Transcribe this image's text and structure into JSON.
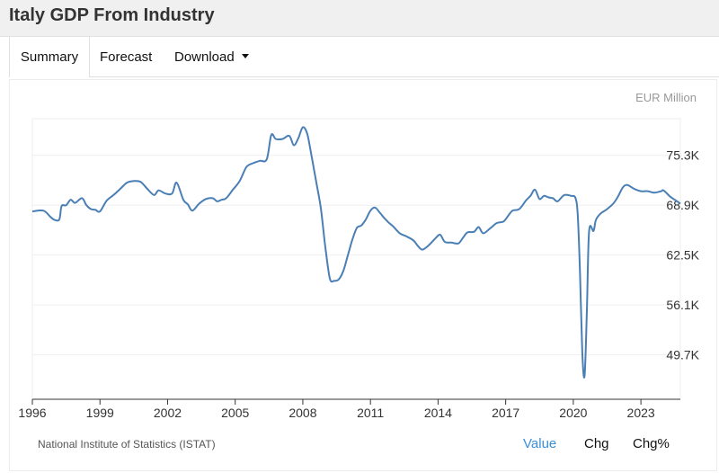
{
  "page": {
    "title": "Italy GDP From Industry"
  },
  "tabs": [
    {
      "label": "Summary",
      "active": true
    },
    {
      "label": "Forecast",
      "active": false
    },
    {
      "label": "Download",
      "active": false
    }
  ],
  "footer": {
    "source": "National Institute of Statistics (ISTAT)",
    "toggles": [
      {
        "label": "Value",
        "color": "#3a8fd8"
      },
      {
        "label": "Chg",
        "color": "#111111"
      },
      {
        "label": "Chg%",
        "color": "#111111"
      }
    ]
  },
  "chart_data": {
    "type": "line",
    "unit_label": "EUR Million",
    "line_color": "#4a7fb5",
    "ylim": [
      44000,
      80000
    ],
    "y_ticks": [
      {
        "value": 75300,
        "label": "75.3K"
      },
      {
        "value": 68900,
        "label": "68.9K"
      },
      {
        "value": 62500,
        "label": "62.5K"
      },
      {
        "value": 56100,
        "label": "56.1K"
      },
      {
        "value": 49700,
        "label": "49.7K"
      }
    ],
    "xlim": [
      1996.0,
      2024.75
    ],
    "x_ticks": [
      "1996",
      "1999",
      "2002",
      "2005",
      "2008",
      "2011",
      "2014",
      "2017",
      "2020",
      "2023"
    ],
    "series": [
      {
        "points": [
          [
            1996.0,
            68100
          ],
          [
            1996.5,
            68200
          ],
          [
            1996.8,
            67400
          ],
          [
            1997.0,
            67000
          ],
          [
            1997.2,
            67100
          ],
          [
            1997.3,
            68800
          ],
          [
            1997.5,
            68900
          ],
          [
            1997.7,
            69600
          ],
          [
            1997.9,
            69200
          ],
          [
            1998.2,
            69800
          ],
          [
            1998.4,
            68900
          ],
          [
            1998.6,
            68400
          ],
          [
            1998.8,
            68300
          ],
          [
            1999.0,
            68100
          ],
          [
            1999.3,
            69500
          ],
          [
            1999.6,
            70200
          ],
          [
            1999.9,
            71000
          ],
          [
            2000.2,
            71800
          ],
          [
            2000.5,
            72000
          ],
          [
            2000.8,
            71900
          ],
          [
            2001.1,
            71000
          ],
          [
            2001.4,
            70200
          ],
          [
            2001.6,
            70800
          ],
          [
            2001.9,
            70400
          ],
          [
            2002.2,
            70400
          ],
          [
            2002.4,
            71800
          ],
          [
            2002.7,
            69600
          ],
          [
            2002.9,
            69000
          ],
          [
            2003.1,
            68200
          ],
          [
            2003.4,
            69100
          ],
          [
            2003.7,
            69700
          ],
          [
            2004.0,
            69800
          ],
          [
            2004.2,
            69400
          ],
          [
            2004.4,
            69600
          ],
          [
            2004.6,
            69800
          ],
          [
            2004.9,
            70900
          ],
          [
            2005.2,
            72000
          ],
          [
            2005.5,
            73800
          ],
          [
            2005.8,
            74300
          ],
          [
            2006.1,
            74600
          ],
          [
            2006.4,
            74800
          ],
          [
            2006.6,
            77900
          ],
          [
            2006.8,
            77400
          ],
          [
            2007.1,
            77400
          ],
          [
            2007.4,
            77800
          ],
          [
            2007.6,
            76600
          ],
          [
            2007.8,
            77500
          ],
          [
            2008.0,
            78900
          ],
          [
            2008.2,
            78000
          ],
          [
            2008.4,
            75000
          ],
          [
            2008.6,
            71800
          ],
          [
            2008.8,
            68500
          ],
          [
            2009.0,
            63500
          ],
          [
            2009.2,
            59500
          ],
          [
            2009.4,
            59200
          ],
          [
            2009.6,
            59400
          ],
          [
            2009.8,
            60500
          ],
          [
            2010.0,
            62500
          ],
          [
            2010.2,
            64500
          ],
          [
            2010.4,
            66000
          ],
          [
            2010.6,
            66300
          ],
          [
            2010.8,
            67100
          ],
          [
            2011.0,
            68200
          ],
          [
            2011.2,
            68600
          ],
          [
            2011.4,
            68000
          ],
          [
            2011.6,
            67300
          ],
          [
            2011.8,
            66700
          ],
          [
            2012.0,
            66200
          ],
          [
            2012.3,
            65300
          ],
          [
            2012.6,
            64900
          ],
          [
            2012.9,
            64400
          ],
          [
            2013.1,
            63700
          ],
          [
            2013.3,
            63200
          ],
          [
            2013.6,
            63800
          ],
          [
            2013.9,
            64700
          ],
          [
            2014.1,
            65100
          ],
          [
            2014.3,
            64200
          ],
          [
            2014.6,
            64100
          ],
          [
            2014.9,
            64000
          ],
          [
            2015.1,
            64700
          ],
          [
            2015.3,
            65400
          ],
          [
            2015.6,
            65500
          ],
          [
            2015.8,
            66100
          ],
          [
            2016.0,
            65300
          ],
          [
            2016.3,
            65900
          ],
          [
            2016.6,
            66600
          ],
          [
            2016.9,
            66800
          ],
          [
            2017.1,
            67500
          ],
          [
            2017.3,
            68200
          ],
          [
            2017.6,
            68400
          ],
          [
            2017.9,
            69500
          ],
          [
            2018.1,
            70100
          ],
          [
            2018.3,
            70900
          ],
          [
            2018.5,
            69700
          ],
          [
            2018.7,
            70100
          ],
          [
            2018.9,
            69900
          ],
          [
            2019.1,
            69800
          ],
          [
            2019.3,
            69400
          ],
          [
            2019.6,
            70200
          ],
          [
            2019.9,
            70100
          ],
          [
            2020.1,
            69800
          ],
          [
            2020.2,
            67500
          ],
          [
            2020.3,
            60000
          ],
          [
            2020.4,
            50000
          ],
          [
            2020.5,
            47000
          ],
          [
            2020.6,
            55000
          ],
          [
            2020.7,
            65500
          ],
          [
            2020.9,
            65600
          ],
          [
            2021.0,
            67000
          ],
          [
            2021.2,
            67800
          ],
          [
            2021.5,
            68400
          ],
          [
            2021.8,
            69200
          ],
          [
            2022.0,
            70100
          ],
          [
            2022.2,
            71200
          ],
          [
            2022.4,
            71500
          ],
          [
            2022.7,
            71000
          ],
          [
            2023.0,
            70700
          ],
          [
            2023.3,
            70700
          ],
          [
            2023.6,
            70500
          ],
          [
            2023.9,
            70700
          ],
          [
            2024.0,
            70800
          ],
          [
            2024.3,
            70000
          ],
          [
            2024.5,
            69600
          ],
          [
            2024.75,
            69100
          ]
        ]
      }
    ]
  }
}
